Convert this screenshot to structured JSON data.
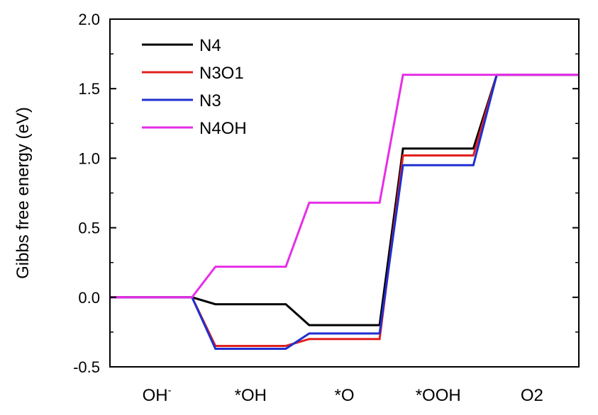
{
  "chart_data": {
    "type": "line",
    "title": "",
    "ylabel": "Gibbs free energy (eV)",
    "xlabel": "",
    "ylim": [
      -0.5,
      2.0
    ],
    "yticks": [
      {
        "value": -0.5,
        "label": "-0.5"
      },
      {
        "value": 0.0,
        "label": "0.0"
      },
      {
        "value": 0.5,
        "label": "0.5"
      },
      {
        "value": 1.0,
        "label": "1.0"
      },
      {
        "value": 1.5,
        "label": "1.5"
      },
      {
        "value": 2.0,
        "label": "2.0"
      }
    ],
    "categories": [
      {
        "label": "OH",
        "superscript": "-"
      },
      {
        "label": "*OH",
        "superscript": ""
      },
      {
        "label": "*O",
        "superscript": ""
      },
      {
        "label": "*OOH",
        "superscript": ""
      },
      {
        "label": "O2",
        "superscript": ""
      }
    ],
    "legend_position": "top-left",
    "grid": false,
    "series": [
      {
        "name": "N4",
        "color": "#000000",
        "values": [
          0.0,
          -0.05,
          -0.2,
          1.07,
          1.6
        ]
      },
      {
        "name": "N3O1",
        "color": "#e0201e",
        "values": [
          0.0,
          -0.35,
          -0.3,
          1.02,
          1.6
        ]
      },
      {
        "name": "N3",
        "color": "#1f2fd0",
        "values": [
          0.0,
          -0.37,
          -0.26,
          0.95,
          1.6
        ]
      },
      {
        "name": "N4OH",
        "color": "#e62ee6",
        "values": [
          0.0,
          0.22,
          0.68,
          1.6,
          1.6
        ]
      }
    ]
  }
}
